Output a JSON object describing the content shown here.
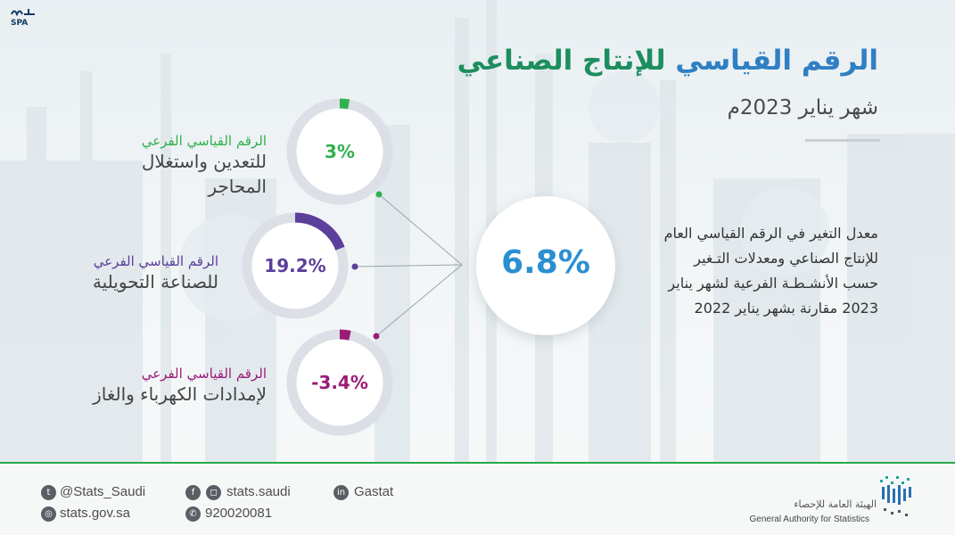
{
  "agency_logo": "SPA",
  "title": {
    "part_blue": "الرقم القياسي",
    "part_green": "للإنتاج الصناعي"
  },
  "subtitle": "شهر يناير  2023م",
  "description": "معدل التغير في الرقم القياسي العام للإنتاج الصناعي ومعدلات التـغير حسب الأنشـطـة الفرعية لشهر يناير 2023 مقارنة بشهر يناير 2022",
  "center": {
    "value": "6.8%"
  },
  "indices": [
    {
      "small": "الرقم القياسي الفرعي",
      "big": "للتعدين واستغلال المحاجر",
      "value": "3%",
      "color": "#2fb14d",
      "fill_percent": 3
    },
    {
      "small": "الرقم القياسي الفرعي",
      "big": "للصناعة التحويلية",
      "value": "19.2%",
      "color": "#5b3f9a",
      "fill_percent": 19.2
    },
    {
      "small": "الرقم القياسي الفرعي",
      "big": "لإمدادات الكهرباء والغاز",
      "value": "-3.4%",
      "color": "#9b1b78",
      "fill_percent": 3.4
    }
  ],
  "footer": {
    "twitter": "@Stats_Saudi",
    "web": "stats.gov.sa",
    "social": "stats.saudi",
    "phone": "920020081",
    "linkedin": "Gastat",
    "org_ar": "الهيئة العامة للإحصاء",
    "org_en": "General Authority for Statistics"
  },
  "colors": {
    "accent_green": "#27a84a",
    "accent_blue": "#2a8fd1"
  }
}
